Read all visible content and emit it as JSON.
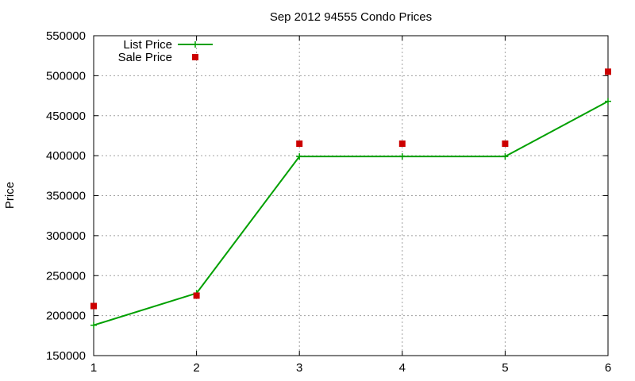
{
  "chart_data": {
    "type": "line",
    "title": "Sep 2012 94555 Condo Prices",
    "xlabel": "",
    "ylabel": "Price",
    "x": [
      1,
      2,
      3,
      4,
      5,
      6
    ],
    "xlim": [
      1,
      6
    ],
    "ylim": [
      150000,
      550000
    ],
    "xticks": [
      "1",
      "2",
      "3",
      "4",
      "5",
      "6"
    ],
    "yticks": [
      "150000",
      "200000",
      "250000",
      "300000",
      "350000",
      "400000",
      "450000",
      "500000",
      "550000"
    ],
    "grid": true,
    "legend_position": "top-left",
    "series": [
      {
        "name": "List Price",
        "kind": "line",
        "marker": "plus",
        "color": "#00a000",
        "values": [
          188000,
          228000,
          399000,
          399000,
          399000,
          468000
        ]
      },
      {
        "name": "Sale Price",
        "kind": "points",
        "marker": "square",
        "color": "#cc0000",
        "values": [
          212000,
          225000,
          415000,
          415000,
          415000,
          505000
        ]
      }
    ]
  }
}
